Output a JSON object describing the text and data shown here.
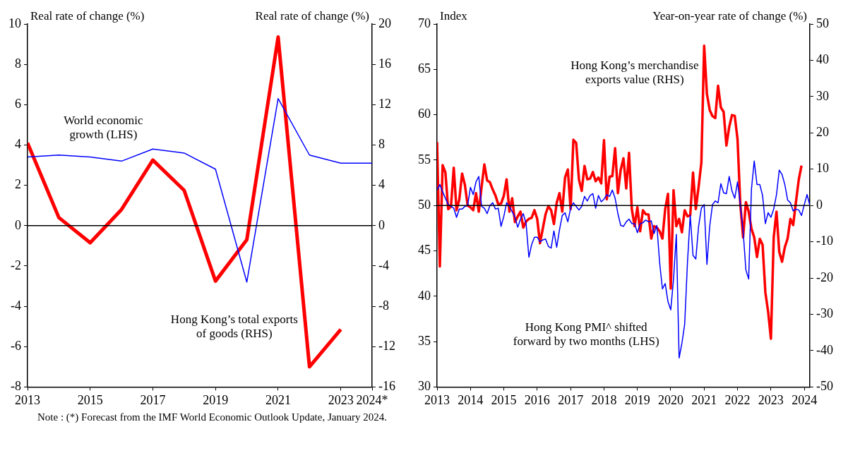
{
  "chart_data": [
    {
      "type": "line",
      "ylabel": "Real rate of change (%)",
      "y2label": "Real rate of change (%)",
      "x": [
        2013,
        2014,
        2015,
        2016,
        2017,
        2018,
        2019,
        2020,
        2021,
        2022,
        2023,
        2024
      ],
      "series": [
        {
          "name": "World economic growth (LHS)",
          "color": "#0000ff",
          "values": [
            3.4,
            3.5,
            3.4,
            3.2,
            3.8,
            3.6,
            2.8,
            -2.8,
            6.3,
            3.5,
            3.1,
            3.1
          ]
        },
        {
          "name": "Hong Kong’s total exports of goods (RHS)",
          "color": "#ff0000",
          "axis": "y2",
          "x": [
            2013,
            2014,
            2015,
            2016,
            2017,
            2018,
            2019,
            2020,
            2021,
            2022,
            2023
          ],
          "values": [
            8.2,
            0.8,
            -1.7,
            1.6,
            6.5,
            3.5,
            -5.5,
            -1.4,
            18.7,
            -14.0,
            -10.3
          ]
        }
      ],
      "xlim": [
        2013,
        2024
      ],
      "xticks": [
        2013,
        2015,
        2017,
        2019,
        2021,
        2023,
        {
          "value": 2024,
          "label": "2024*"
        }
      ],
      "ylim": [
        -8,
        10
      ],
      "yticks": [
        -8,
        -6,
        -4,
        -2,
        0,
        2,
        4,
        6,
        8,
        10
      ],
      "y2lim": [
        -16,
        20
      ],
      "y2ticks": [
        -16,
        -12,
        -8,
        -4,
        0,
        4,
        8,
        12,
        16,
        20
      ],
      "ref_lines": [
        {
          "axis": "y",
          "value": 0,
          "color": "#000000"
        }
      ],
      "annotations": [
        "Note :  (*) Forecast from the IMF World Economic Outlook Update, January 2024."
      ],
      "legend": false,
      "grid": false
    },
    {
      "type": "line",
      "ylabel": "Index",
      "y2label": "Year-on-year rate of change (%)",
      "x": [
        "2013-01",
        "2013-02",
        "2013-03",
        "2013-04",
        "2013-05",
        "2013-06",
        "2013-07",
        "2013-08",
        "2013-09",
        "2013-10",
        "2013-11",
        "2013-12",
        "2014-01",
        "2014-02",
        "2014-03",
        "2014-04",
        "2014-05",
        "2014-06",
        "2014-07",
        "2014-08",
        "2014-09",
        "2014-10",
        "2014-11",
        "2014-12",
        "2015-01",
        "2015-02",
        "2015-03",
        "2015-04",
        "2015-05",
        "2015-06",
        "2015-07",
        "2015-08",
        "2015-09",
        "2015-10",
        "2015-11",
        "2015-12",
        "2016-01",
        "2016-02",
        "2016-03",
        "2016-04",
        "2016-05",
        "2016-06",
        "2016-07",
        "2016-08",
        "2016-09",
        "2016-10",
        "2016-11",
        "2016-12",
        "2017-01",
        "2017-02",
        "2017-03",
        "2017-04",
        "2017-05",
        "2017-06",
        "2017-07",
        "2017-08",
        "2017-09",
        "2017-10",
        "2017-11",
        "2017-12",
        "2018-01",
        "2018-02",
        "2018-03",
        "2018-04",
        "2018-05",
        "2018-06",
        "2018-07",
        "2018-08",
        "2018-09",
        "2018-10",
        "2018-11",
        "2018-12",
        "2019-01",
        "2019-02",
        "2019-03",
        "2019-04",
        "2019-05",
        "2019-06",
        "2019-07",
        "2019-08",
        "2019-09",
        "2019-10",
        "2019-11",
        "2019-12",
        "2020-01",
        "2020-02",
        "2020-03",
        "2020-04",
        "2020-05",
        "2020-06",
        "2020-07",
        "2020-08",
        "2020-09",
        "2020-10",
        "2020-11",
        "2020-12",
        "2021-01",
        "2021-02",
        "2021-03",
        "2021-04",
        "2021-05",
        "2021-06",
        "2021-07",
        "2021-08",
        "2021-09",
        "2021-10",
        "2021-11",
        "2021-12",
        "2022-01",
        "2022-02",
        "2022-03",
        "2022-04",
        "2022-05",
        "2022-06",
        "2022-07",
        "2022-08",
        "2022-09",
        "2022-10",
        "2022-11",
        "2022-12",
        "2023-01",
        "2023-02",
        "2023-03",
        "2023-04",
        "2023-05",
        "2023-06",
        "2023-07",
        "2023-08",
        "2023-09",
        "2023-10",
        "2023-11",
        "2023-12",
        "2024-01",
        "2024-02",
        "2024-03"
      ],
      "series": [
        {
          "name": "Hong Kong PMI^ shifted forward by two months (LHS)",
          "color": "#0000ff",
          "values": [
            51.7,
            52.3,
            51.5,
            50.8,
            50.1,
            49.9,
            49.7,
            48.7,
            49.6,
            49.6,
            49.9,
            50.0,
            52.0,
            51.2,
            52.6,
            53.2,
            49.9,
            49.7,
            49.1,
            50.0,
            50.3,
            49.6,
            49.7,
            47.7,
            48.8,
            50.3,
            49.9,
            49.3,
            48.7,
            47.6,
            48.5,
            49.1,
            48.0,
            44.3,
            45.7,
            46.5,
            46.5,
            46.0,
            46.2,
            46.3,
            45.5,
            45.3,
            47.2,
            45.4,
            47.3,
            48.9,
            49.2,
            48.2,
            49.7,
            50.3,
            49.9,
            49.5,
            49.9,
            51.0,
            50.5,
            51.1,
            51.3,
            49.7,
            51.1,
            50.4,
            50.7,
            51.2,
            51.0,
            51.7,
            50.8,
            49.1,
            47.8,
            47.7,
            48.2,
            48.5,
            48.0,
            48.0,
            47.0,
            48.0,
            48.1,
            48.4,
            48.2,
            48.3,
            46.9,
            47.8,
            43.7,
            40.8,
            41.4,
            39.4,
            38.5,
            41.9,
            46.8,
            33.2,
            34.8,
            36.9,
            43.7,
            48.9,
            44.5,
            44.1,
            47.7,
            49.7,
            50.1,
            43.5,
            47.7,
            50.1,
            50.5,
            50.3,
            52.4,
            51.4,
            51.3,
            53.2,
            51.6,
            50.8,
            52.6,
            50.1,
            47.2,
            42.9,
            41.9,
            51.8,
            54.9,
            52.3,
            52.3,
            51.1,
            48.0,
            49.2,
            48.7,
            49.6,
            51.2,
            53.9,
            53.4,
            52.3,
            50.6,
            50.3,
            49.4,
            49.6,
            49.5,
            48.9,
            50.1,
            51.2,
            50.0
          ]
        },
        {
          "name": "Hong Kong’s merchandise exports value (RHS)",
          "color": "#ff0000",
          "axis": "y2",
          "values": [
            17.5,
            -16.8,
            11.1,
            9.1,
            -1.0,
            -0.3,
            10.4,
            -1.3,
            1.7,
            8.8,
            5.7,
            0.0,
            -0.5,
            -1.3,
            3.4,
            -1.7,
            5.1,
            11.3,
            6.9,
            6.4,
            4.4,
            2.7,
            0.3,
            0.5,
            2.7,
            7.2,
            -1.7,
            2.0,
            -4.6,
            -3.0,
            -1.7,
            -6.1,
            -4.4,
            -3.7,
            -3.4,
            -1.3,
            -3.7,
            -10.4,
            -6.4,
            -2.4,
            -0.2,
            -1.3,
            -5.1,
            0.7,
            3.4,
            -1.7,
            7.7,
            9.9,
            -1.0,
            18.1,
            17.2,
            7.1,
            4.0,
            10.9,
            7.2,
            7.4,
            9.2,
            6.7,
            7.7,
            6.1,
            18.0,
            1.7,
            7.9,
            8.1,
            15.8,
            3.4,
            9.8,
            13.0,
            4.7,
            14.5,
            -1.0,
            -5.7,
            -0.5,
            -7.1,
            -1.3,
            -2.4,
            -2.5,
            -9.1,
            -5.7,
            -6.1,
            -7.1,
            -9.1,
            -1.0,
            3.2,
            -22.9,
            4.2,
            -5.7,
            -3.7,
            -7.4,
            -1.3,
            -3.0,
            -2.7,
            9.1,
            -1.0,
            5.1,
            11.8,
            44.0,
            30.7,
            26.3,
            24.6,
            24.1,
            33.0,
            27.0,
            25.8,
            16.5,
            21.6,
            24.9,
            24.7,
            18.2,
            0.3,
            -8.8,
            0.9,
            -1.7,
            -6.4,
            -8.8,
            -14.2,
            -9.2,
            -10.8,
            -23.9,
            -29.3,
            -36.7,
            -8.8,
            -1.7,
            -12.8,
            -15.5,
            -11.5,
            -9.1,
            -3.7,
            -5.4,
            1.0,
            7.1,
            11.0,
            null,
            null,
            null
          ]
        }
      ],
      "xlim": [
        "2013-01",
        "2024-03"
      ],
      "xticks": [
        "2013",
        "2014",
        "2015",
        "2016",
        "2017",
        "2018",
        "2019",
        "2020",
        "2021",
        "2022",
        "2023",
        "2024"
      ],
      "ylim": [
        30,
        70
      ],
      "yticks": [
        30,
        35,
        40,
        45,
        50,
        55,
        60,
        65,
        70
      ],
      "y2lim": [
        -50,
        50
      ],
      "y2ticks": [
        -50,
        -40,
        -30,
        -20,
        -10,
        0,
        10,
        20,
        30,
        40,
        50
      ],
      "ref_lines": [
        {
          "axis": "y",
          "value": 50,
          "color": "#000000"
        }
      ],
      "legend": false,
      "grid": false
    }
  ]
}
